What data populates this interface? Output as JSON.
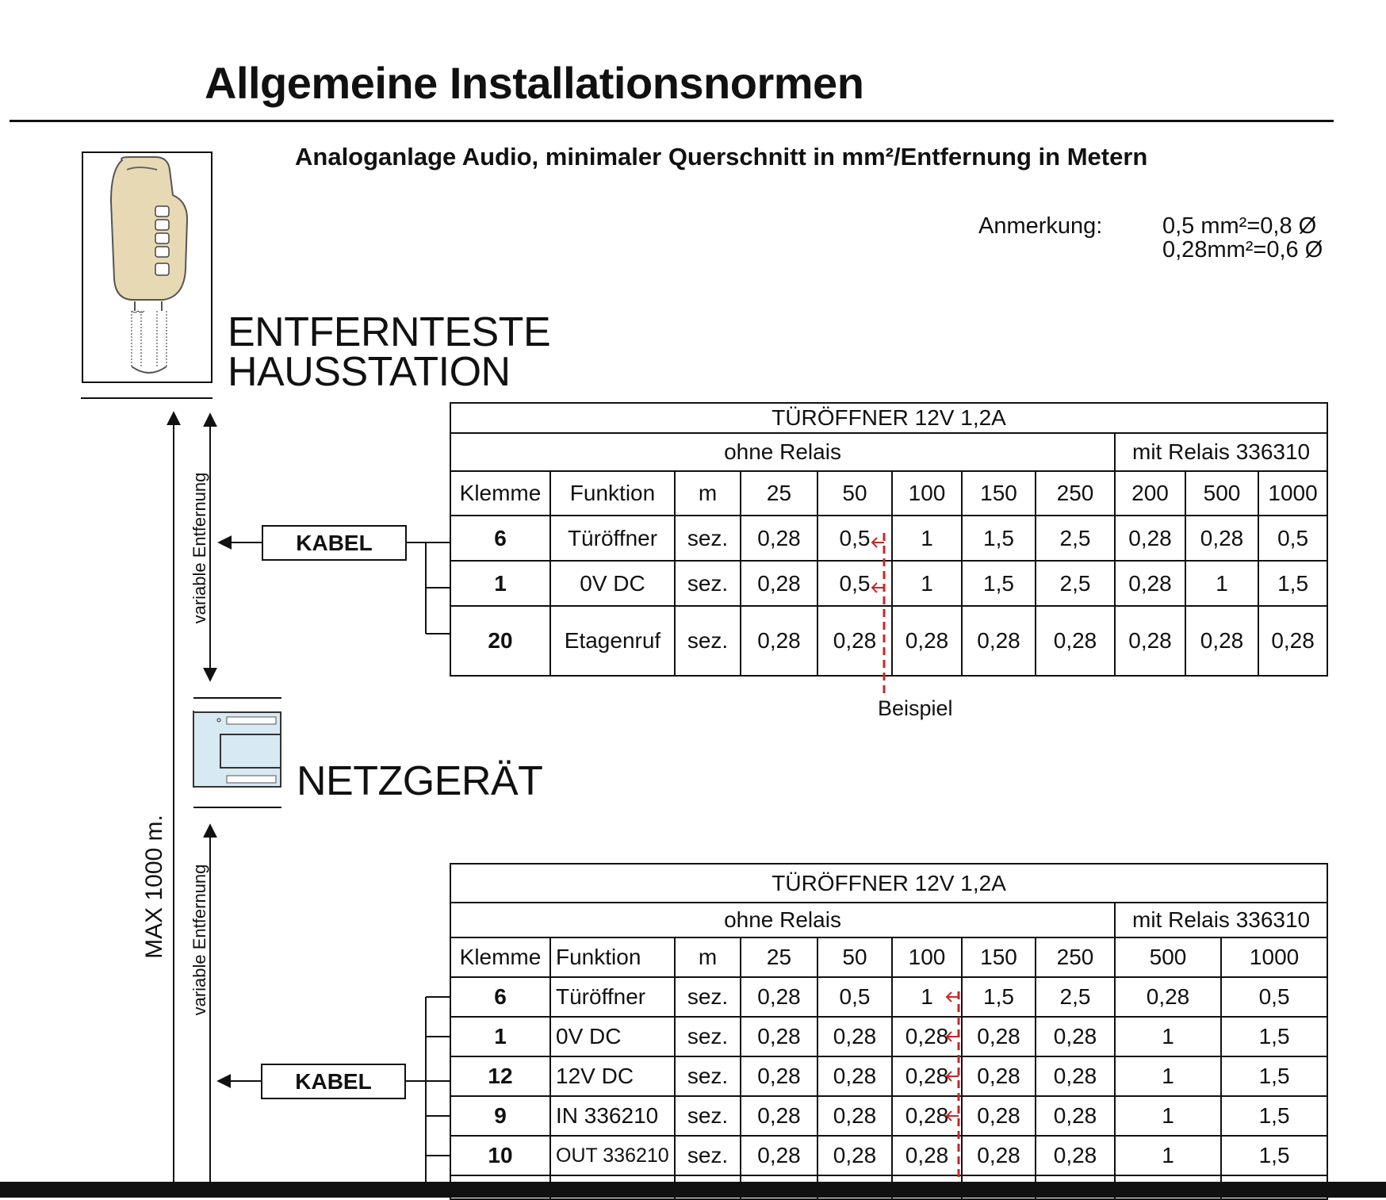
{
  "header": {
    "title": "Allgemeine Installationsnormen",
    "subtitle": "Analoganlage Audio, minimaler Querschnitt in mm²/Entfernung in Metern"
  },
  "note": {
    "label": "Anmerkung:",
    "line1": "0,5  mm²=0,8 Ø",
    "line2": "0,28mm²=0,6 Ø"
  },
  "station": {
    "line1": "ENTFERNTESTE",
    "line2": "HAUSSTATION"
  },
  "psu": {
    "label": "NETZGERÄT"
  },
  "diagram": {
    "variable_distance": "variable Entfernung",
    "max_distance": "MAX 1000 m.",
    "cable": "KABEL",
    "example": "Beispiel"
  },
  "table1": {
    "title": "TÜRÖFFNER 12V 1,2A",
    "group_without": "ohne Relais",
    "group_with": "mit Relais 336310",
    "headers": [
      "Klemme",
      "Funktion",
      "m",
      "25",
      "50",
      "100",
      "150",
      "250",
      "200",
      "500",
      "1000"
    ],
    "rows": [
      [
        "6",
        "Türöffner",
        "sez.",
        "0,28",
        "0,5",
        "1",
        "1,5",
        "2,5",
        "0,28",
        "0,28",
        "0,5"
      ],
      [
        "1",
        "0V DC",
        "sez.",
        "0,28",
        "0,5",
        "1",
        "1,5",
        "2,5",
        "0,28",
        "1",
        "1,5"
      ],
      [
        "20",
        "Etagenruf",
        "sez.",
        "0,28",
        "0,28",
        "0,28",
        "0,28",
        "0,28",
        "0,28",
        "0,28",
        "0,28"
      ]
    ]
  },
  "table2": {
    "title": "TÜRÖFFNER 12V 1,2A",
    "group_without": "ohne Relais",
    "group_with": "mit Relais 336310",
    "headers": [
      "Klemme",
      "Funktion",
      "m",
      "25",
      "50",
      "100",
      "150",
      "250",
      "500",
      "1000"
    ],
    "rows": [
      [
        "6",
        "Türöffner",
        "sez.",
        "0,28",
        "0,5",
        "1",
        "1,5",
        "2,5",
        "0,28",
        "0,5"
      ],
      [
        "1",
        "0V DC",
        "sez.",
        "0,28",
        "0,28",
        "0,28",
        "0,28",
        "0,28",
        "1",
        "1,5"
      ],
      [
        "12",
        "12V DC",
        "sez.",
        "0,28",
        "0,28",
        "0,28",
        "0,28",
        "0,28",
        "1",
        "1,5"
      ],
      [
        "9",
        "IN 336210",
        "sez.",
        "0,28",
        "0,28",
        "0,28",
        "0,28",
        "0,28",
        "1",
        "1,5"
      ],
      [
        "10",
        "OUT 336210",
        "sez.",
        "0,28",
        "0,28",
        "0,28",
        "0,28",
        "0,28",
        "1",
        "1,5"
      ]
    ]
  },
  "colors": {
    "handset": "#e8d9b5",
    "power_supply": "#d7e9f2",
    "example_marker": "#c62828"
  }
}
